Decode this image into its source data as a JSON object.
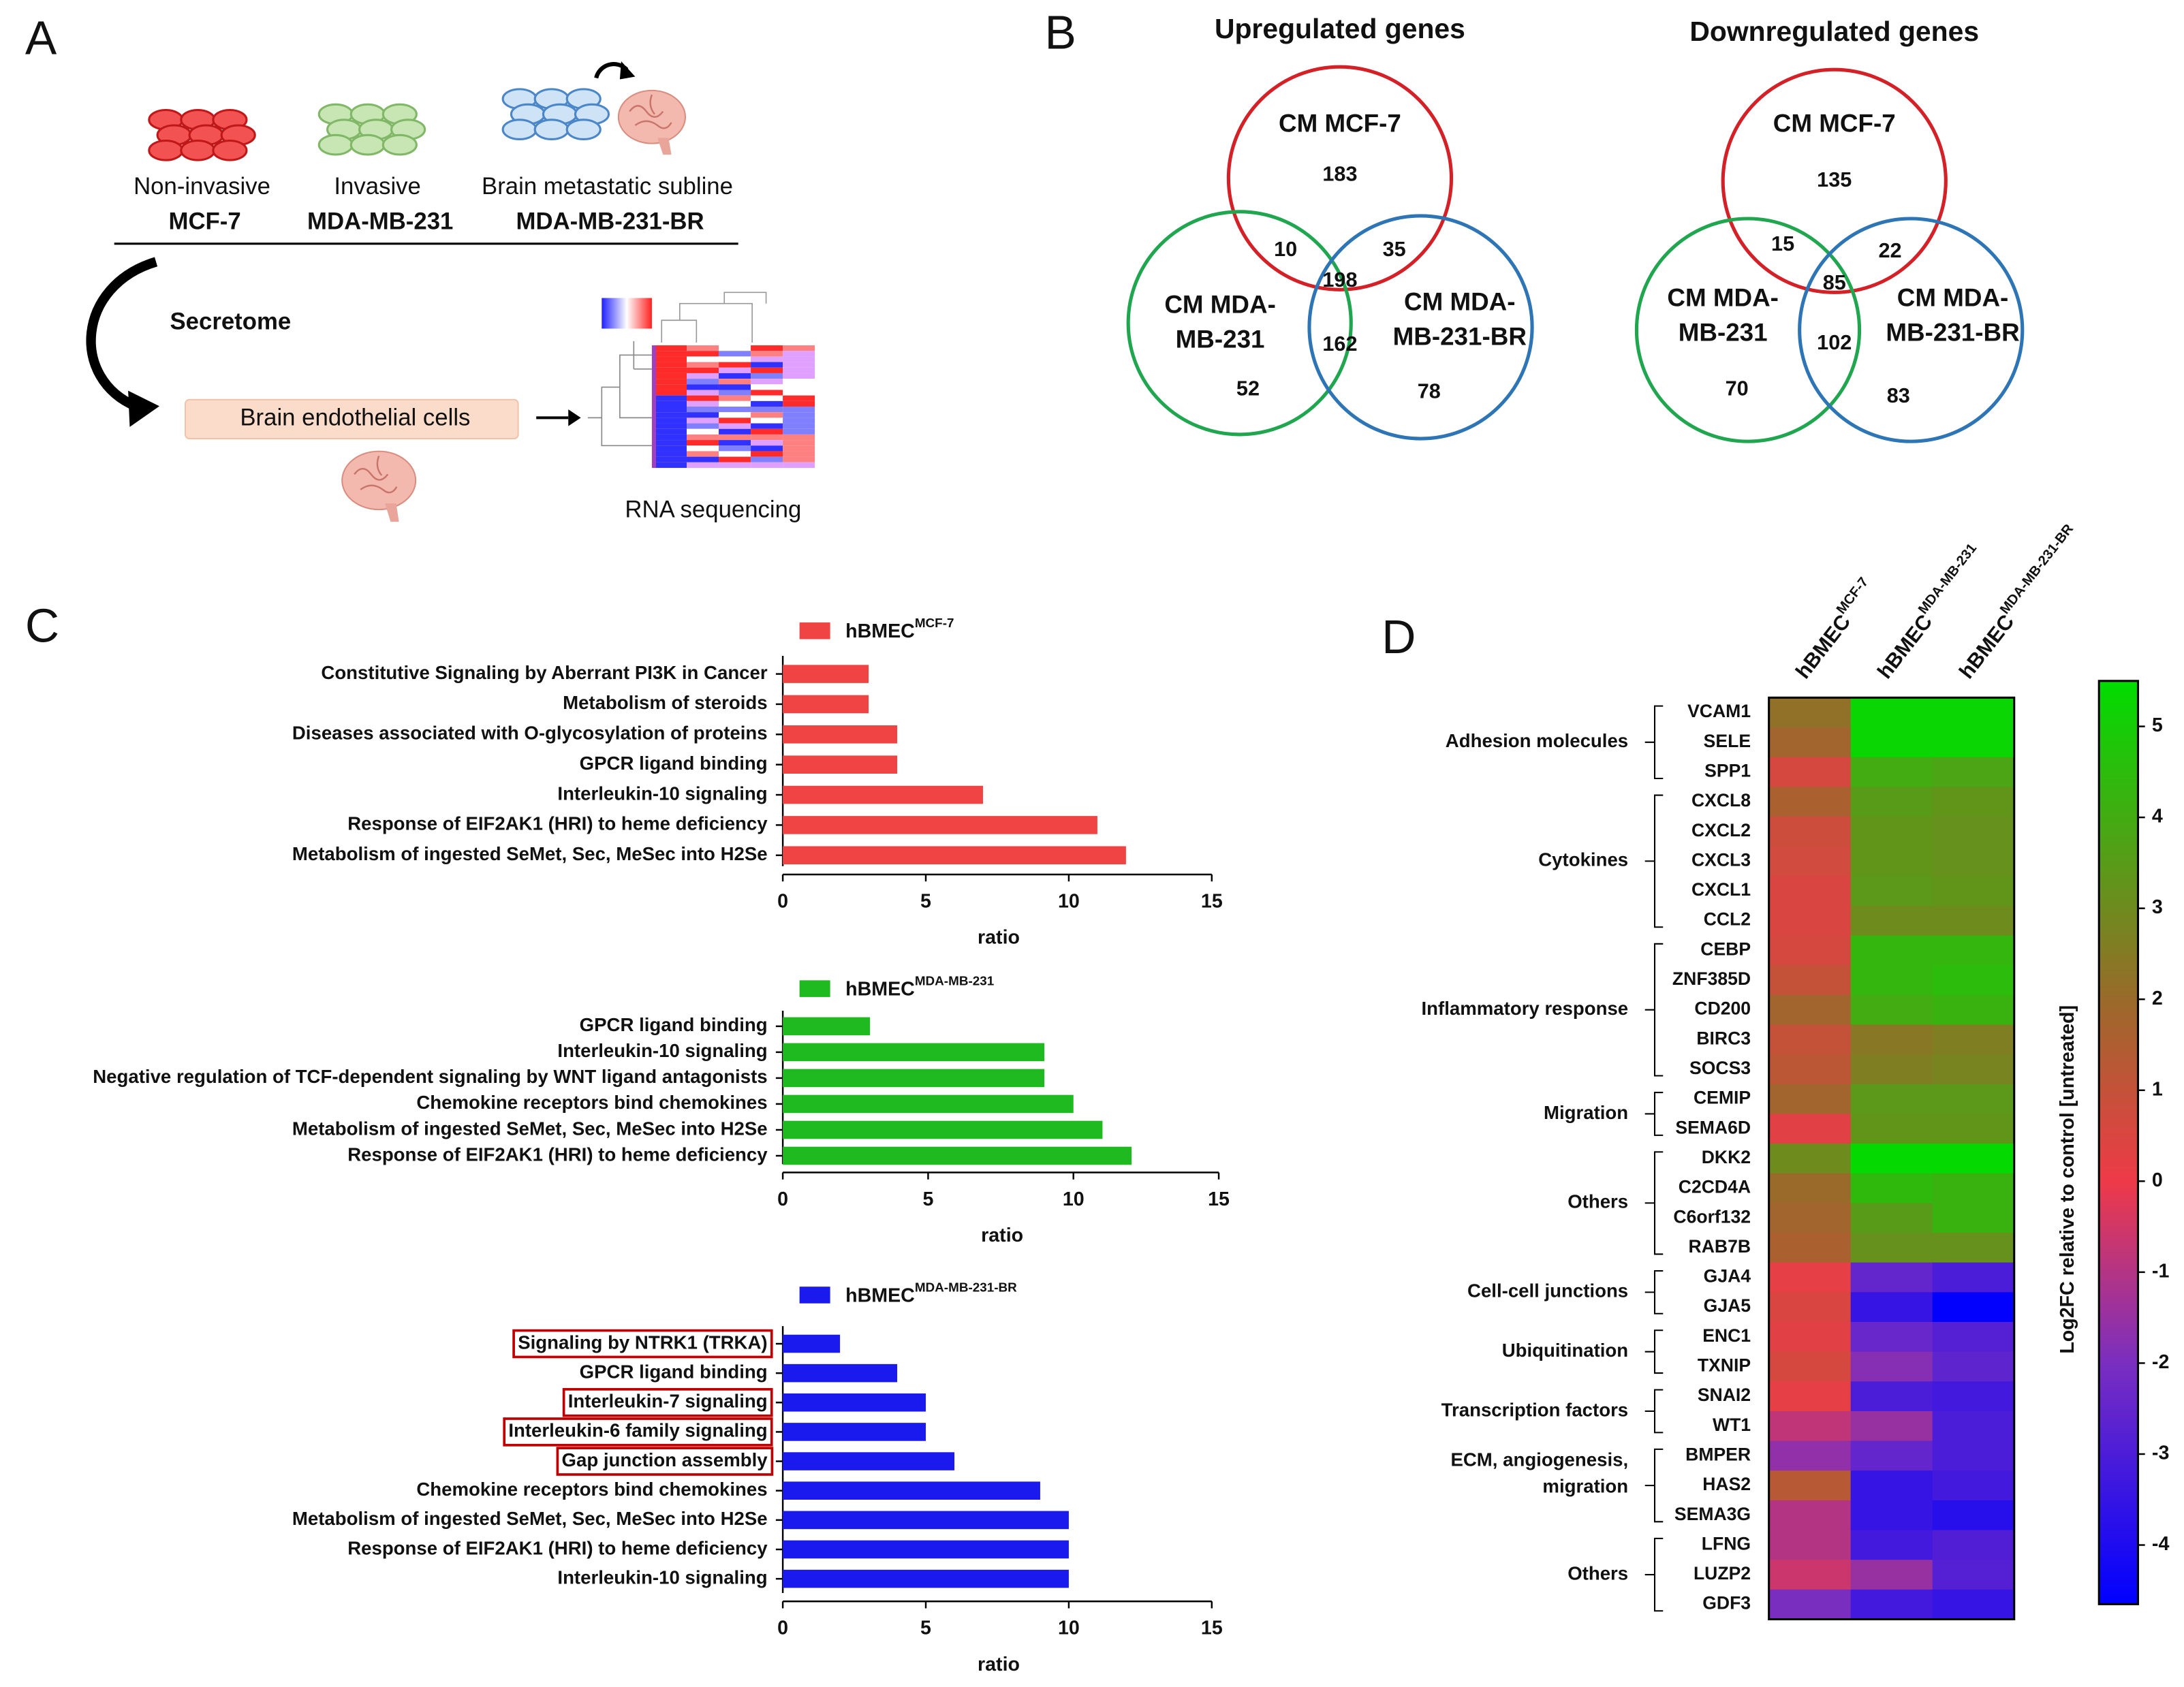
{
  "panel_a": {
    "letter": "A",
    "lines": [
      {
        "top": "Non-invasive",
        "bottom": "MCF-7"
      },
      {
        "top": "Invasive",
        "bottom": "MDA-MB-231"
      },
      {
        "top": "Brain metastatic subline",
        "bottom": "MDA-MB-231-BR"
      }
    ],
    "arrow_label": "Secretome",
    "box_label": "Brain endothelial cells",
    "result_label": "RNA sequencing"
  },
  "panel_b": {
    "letter": "B",
    "colors": [
      "#d42027",
      "#21a650",
      "#2e75b6"
    ],
    "venns": [
      {
        "title": "Upregulated genes",
        "labels": [
          [
            "CM MCF-7"
          ],
          [
            "CM MDA-",
            "MB-231"
          ],
          [
            "CM MDA-",
            "MB-231-BR"
          ]
        ],
        "counts": [
          183,
          10,
          35,
          198,
          52,
          162,
          78
        ]
      },
      {
        "title": "Downregulated genes",
        "labels": [
          [
            "CM MCF-7"
          ],
          [
            "CM MDA-",
            "MB-231"
          ],
          [
            "CM MDA-",
            "MB-231-BR"
          ]
        ],
        "counts": [
          135,
          15,
          22,
          85,
          70,
          102,
          83
        ]
      }
    ]
  },
  "panel_c": {
    "letter": "C"
  },
  "panel_d": {
    "letter": "D"
  },
  "chart_data": [
    {
      "type": "bar",
      "orientation": "horizontal",
      "categories": [
        "Constitutive Signaling by Aberrant PI3K in Cancer",
        "Metabolism of steroids",
        "Diseases associated with O-glycosylation of proteins",
        "GPCR ligand binding",
        "Interleukin-10 signaling",
        "Response of EIF2AK1 (HRI) to heme deficiency",
        "Metabolism of ingested SeMet, Sec, MeSec into H2Se"
      ],
      "series": [
        {
          "name": "hBMEC",
          "superscript": "MCF-7",
          "color": "#f04444",
          "values": [
            3,
            3,
            4,
            4,
            7,
            11,
            12
          ]
        }
      ],
      "xlim": [
        0,
        15
      ],
      "xticks": [
        0,
        5,
        10,
        15
      ],
      "xlabel": "ratio"
    },
    {
      "type": "bar",
      "orientation": "horizontal",
      "categories": [
        "GPCR ligand binding",
        "Interleukin-10 signaling",
        "Negative regulation of TCF-dependent signaling by WNT ligand antagonists",
        "Chemokine receptors bind chemokines",
        "Metabolism of ingested SeMet, Sec, MeSec into H2Se",
        "Response of EIF2AK1 (HRI) to heme deficiency"
      ],
      "series": [
        {
          "name": "hBMEC",
          "superscript": "MDA-MB-231",
          "color": "#1fba1f",
          "values": [
            3,
            9,
            9,
            10,
            11,
            12
          ]
        }
      ],
      "xlim": [
        0,
        15
      ],
      "xticks": [
        0,
        5,
        10,
        15
      ],
      "xlabel": "ratio"
    },
    {
      "type": "bar",
      "orientation": "horizontal",
      "categories": [
        "Signaling by NTRK1 (TRKA)",
        "GPCR ligand binding",
        "Interleukin-7 signaling",
        "Interleukin-6 family signaling",
        "Gap junction assembly",
        "Chemokine receptors bind chemokines",
        "Metabolism of ingested SeMet, Sec, MeSec into H2Se",
        "Response of EIF2AK1 (HRI) to heme deficiency",
        "Interleukin-10 signaling"
      ],
      "highlighted": [
        true,
        false,
        true,
        true,
        true,
        false,
        false,
        false,
        false
      ],
      "series": [
        {
          "name": "hBMEC",
          "superscript": "MDA-MB-231-BR",
          "color": "#1a1aee",
          "values": [
            2,
            4,
            5,
            5,
            6,
            9,
            10,
            10,
            10
          ]
        }
      ],
      "xlim": [
        0,
        15
      ],
      "xticks": [
        0,
        5,
        10,
        15
      ],
      "xlabel": "ratio"
    },
    {
      "type": "heatmap",
      "columns": [
        {
          "name": "hBMEC",
          "superscript": "MCF-7"
        },
        {
          "name": "hBMEC",
          "superscript": "MDA-MB-231"
        },
        {
          "name": "hBMEC",
          "superscript": "MDA-MB-231-BR"
        }
      ],
      "groups": [
        {
          "label": [
            "Adhesion molecules"
          ],
          "rows": [
            "VCAM1",
            "SELE",
            "SPP1"
          ],
          "values": [
            [
              2.2,
              5.3,
              5.3
            ],
            [
              1.8,
              5.3,
              5.3
            ],
            [
              0.6,
              4.0,
              3.8
            ]
          ]
        },
        {
          "label": [
            "Cytokines"
          ],
          "rows": [
            "CXCL8",
            "CXCL2",
            "CXCL3",
            "CXCL1",
            "CCL2"
          ],
          "values": [
            [
              1.6,
              3.5,
              3.3
            ],
            [
              0.8,
              3.3,
              3.2
            ],
            [
              0.7,
              3.3,
              3.2
            ],
            [
              0.5,
              3.4,
              3.3
            ],
            [
              0.5,
              3.0,
              3.0
            ]
          ]
        },
        {
          "label": [
            "Inflammatory response"
          ],
          "rows": [
            "CEBP",
            "ZNF385D",
            "CD200",
            "BIRC3",
            "SOCS3"
          ],
          "values": [
            [
              0.6,
              4.3,
              4.3
            ],
            [
              1.0,
              4.3,
              4.5
            ],
            [
              1.8,
              4.0,
              4.2
            ],
            [
              1.0,
              2.4,
              2.6
            ],
            [
              1.2,
              2.6,
              2.8
            ]
          ]
        },
        {
          "label": [
            "Migration"
          ],
          "rows": [
            "CEMIP",
            "SEMA6D"
          ],
          "values": [
            [
              1.8,
              3.4,
              3.4
            ],
            [
              0.3,
              3.3,
              3.3
            ]
          ]
        },
        {
          "label": [
            "Others"
          ],
          "rows": [
            "DKK2",
            "C2CD4A",
            "C6orf132",
            "RAB7B"
          ],
          "values": [
            [
              3.0,
              5.4,
              5.4
            ],
            [
              2.0,
              4.4,
              4.2
            ],
            [
              1.8,
              3.5,
              4.2
            ],
            [
              1.6,
              3.2,
              3.2
            ]
          ]
        },
        {
          "label": [
            "Cell-cell junctions"
          ],
          "rows": [
            "GJA4",
            "GJA5"
          ],
          "values": [
            [
              0.2,
              -2.5,
              -3.0
            ],
            [
              0.5,
              -3.5,
              -4.6
            ]
          ]
        },
        {
          "label": [
            "Ubiquitination"
          ],
          "rows": [
            "ENC1",
            "TXNIP"
          ],
          "values": [
            [
              0.3,
              -2.4,
              -2.8
            ],
            [
              0.6,
              -1.8,
              -2.6
            ]
          ]
        },
        {
          "label": [
            "Transcription factors"
          ],
          "rows": [
            "SNAI2",
            "WT1"
          ],
          "values": [
            [
              0.2,
              -3.0,
              -3.2
            ],
            [
              -0.8,
              -1.5,
              -3.0
            ]
          ]
        },
        {
          "label": [
            "ECM, angiogenesis,",
            "migration"
          ],
          "rows": [
            "BMPER",
            "HAS2",
            "SEMA3G"
          ],
          "values": [
            [
              -1.6,
              -2.5,
              -3.0
            ],
            [
              1.3,
              -3.5,
              -3.2
            ],
            [
              -1.0,
              -3.5,
              -3.8
            ]
          ]
        },
        {
          "label": [
            "Others"
          ],
          "rows": [
            "LFNG",
            "LUZP2",
            "GDF3"
          ],
          "values": [
            [
              -1.0,
              -3.2,
              -2.9
            ],
            [
              -0.6,
              -1.5,
              -2.8
            ],
            [
              -2.0,
              -3.2,
              -3.5
            ]
          ]
        }
      ],
      "zlim": [
        -4.65,
        5.5
      ],
      "zticks": [
        5,
        4,
        3,
        2,
        1,
        0,
        -1,
        -2,
        -3,
        -4
      ],
      "zlabel": "Log2FC relative to control [untreated]",
      "colorscale": [
        {
          "value": -4.65,
          "color": "#0000ff"
        },
        {
          "value": -2,
          "color": "#7a2ec0"
        },
        {
          "value": 0,
          "color": "#ee3a48"
        },
        {
          "value": 2,
          "color": "#9a6a2a"
        },
        {
          "value": 5.5,
          "color": "#00dd00"
        }
      ]
    }
  ]
}
